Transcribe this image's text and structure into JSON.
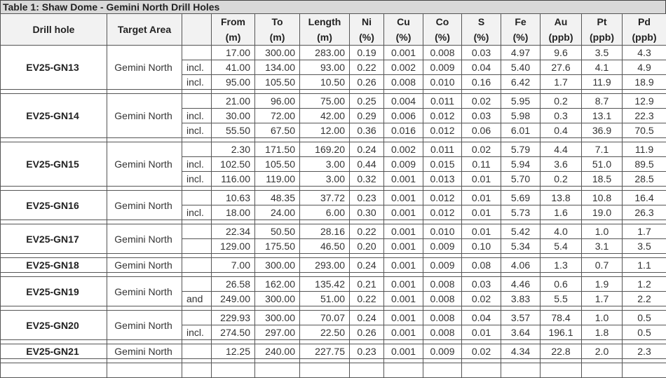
{
  "title": "Table 1: Shaw Dome - Gemini North Drill Holes",
  "headers": {
    "drill_hole": "Drill hole",
    "target_area": "Target Area",
    "qualifier": "",
    "columns": [
      {
        "name": "From",
        "unit": "(m)"
      },
      {
        "name": "To",
        "unit": "(m)"
      },
      {
        "name": "Length",
        "unit": "(m)"
      },
      {
        "name": "Ni",
        "unit": "(%)"
      },
      {
        "name": "Cu",
        "unit": "(%)"
      },
      {
        "name": "Co",
        "unit": "(%)"
      },
      {
        "name": "S",
        "unit": "(%)"
      },
      {
        "name": "Fe",
        "unit": "(%)"
      },
      {
        "name": "Au",
        "unit": "(ppb)"
      },
      {
        "name": "Pt",
        "unit": "(ppb)"
      },
      {
        "name": "Pd",
        "unit": "(ppb)"
      }
    ]
  },
  "holes": [
    {
      "id": "EV25-GN13",
      "area": "Gemini North",
      "rows": [
        {
          "q": "",
          "v": [
            "17.00",
            "300.00",
            "283.00",
            "0.19",
            "0.001",
            "0.008",
            "0.03",
            "4.97",
            "9.6",
            "3.5",
            "4.3"
          ]
        },
        {
          "q": "incl.",
          "v": [
            "41.00",
            "134.00",
            "93.00",
            "0.22",
            "0.002",
            "0.009",
            "0.04",
            "5.40",
            "27.6",
            "4.1",
            "4.9"
          ]
        },
        {
          "q": "incl.",
          "v": [
            "95.00",
            "105.50",
            "10.50",
            "0.26",
            "0.008",
            "0.010",
            "0.16",
            "6.42",
            "1.7",
            "11.9",
            "18.9"
          ]
        }
      ]
    },
    {
      "id": "EV25-GN14",
      "area": "Gemini North",
      "rows": [
        {
          "q": "",
          "v": [
            "21.00",
            "96.00",
            "75.00",
            "0.25",
            "0.004",
            "0.011",
            "0.02",
            "5.95",
            "0.2",
            "8.7",
            "12.9"
          ]
        },
        {
          "q": "incl.",
          "v": [
            "30.00",
            "72.00",
            "42.00",
            "0.29",
            "0.006",
            "0.012",
            "0.03",
            "5.98",
            "0.3",
            "13.1",
            "22.3"
          ]
        },
        {
          "q": "incl.",
          "v": [
            "55.50",
            "67.50",
            "12.00",
            "0.36",
            "0.016",
            "0.012",
            "0.06",
            "6.01",
            "0.4",
            "36.9",
            "70.5"
          ]
        }
      ]
    },
    {
      "id": "EV25-GN15",
      "area": "Gemini North",
      "rows": [
        {
          "q": "",
          "v": [
            "2.30",
            "171.50",
            "169.20",
            "0.24",
            "0.002",
            "0.011",
            "0.02",
            "5.79",
            "4.4",
            "7.1",
            "11.9"
          ]
        },
        {
          "q": "incl.",
          "v": [
            "102.50",
            "105.50",
            "3.00",
            "0.44",
            "0.009",
            "0.015",
            "0.11",
            "5.94",
            "3.6",
            "51.0",
            "89.5"
          ]
        },
        {
          "q": "incl.",
          "v": [
            "116.00",
            "119.00",
            "3.00",
            "0.32",
            "0.001",
            "0.013",
            "0.01",
            "5.70",
            "0.2",
            "18.5",
            "28.5"
          ]
        }
      ]
    },
    {
      "id": "EV25-GN16",
      "area": "Gemini North",
      "rows": [
        {
          "q": "",
          "v": [
            "10.63",
            "48.35",
            "37.72",
            "0.23",
            "0.001",
            "0.012",
            "0.01",
            "5.69",
            "13.8",
            "10.8",
            "16.4"
          ]
        },
        {
          "q": "incl.",
          "v": [
            "18.00",
            "24.00",
            "6.00",
            "0.30",
            "0.001",
            "0.012",
            "0.01",
            "5.73",
            "1.6",
            "19.0",
            "26.3"
          ]
        }
      ]
    },
    {
      "id": "EV25-GN17",
      "area": "Gemini North",
      "rows": [
        {
          "q": "",
          "v": [
            "22.34",
            "50.50",
            "28.16",
            "0.22",
            "0.001",
            "0.010",
            "0.01",
            "5.42",
            "4.0",
            "1.0",
            "1.7"
          ]
        },
        {
          "q": "",
          "v": [
            "129.00",
            "175.50",
            "46.50",
            "0.20",
            "0.001",
            "0.009",
            "0.10",
            "5.34",
            "5.4",
            "3.1",
            "3.5"
          ]
        }
      ]
    },
    {
      "id": "EV25-GN18",
      "area": "Gemini North",
      "rows": [
        {
          "q": "",
          "v": [
            "7.00",
            "300.00",
            "293.00",
            "0.24",
            "0.001",
            "0.009",
            "0.08",
            "4.06",
            "1.3",
            "0.7",
            "1.1"
          ]
        }
      ]
    },
    {
      "id": "EV25-GN19",
      "area": "Gemini North",
      "rows": [
        {
          "q": "",
          "v": [
            "26.58",
            "162.00",
            "135.42",
            "0.21",
            "0.001",
            "0.008",
            "0.03",
            "4.46",
            "0.6",
            "1.9",
            "1.2"
          ]
        },
        {
          "q": "and",
          "v": [
            "249.00",
            "300.00",
            "51.00",
            "0.22",
            "0.001",
            "0.008",
            "0.02",
            "3.83",
            "5.5",
            "1.7",
            "2.2"
          ]
        }
      ]
    },
    {
      "id": "EV25-GN20",
      "area": "Gemini North",
      "rows": [
        {
          "q": "",
          "v": [
            "229.93",
            "300.00",
            "70.07",
            "0.24",
            "0.001",
            "0.008",
            "0.04",
            "3.57",
            "78.4",
            "1.0",
            "0.5"
          ]
        },
        {
          "q": "incl.",
          "v": [
            "274.50",
            "297.00",
            "22.50",
            "0.26",
            "0.001",
            "0.008",
            "0.01",
            "3.64",
            "196.1",
            "1.8",
            "0.5"
          ]
        }
      ]
    },
    {
      "id": "EV25-GN21",
      "area": "Gemini North",
      "rows": [
        {
          "q": "",
          "v": [
            "12.25",
            "240.00",
            "227.75",
            "0.23",
            "0.001",
            "0.009",
            "0.02",
            "4.34",
            "22.8",
            "2.0",
            "2.3"
          ]
        }
      ]
    }
  ]
}
